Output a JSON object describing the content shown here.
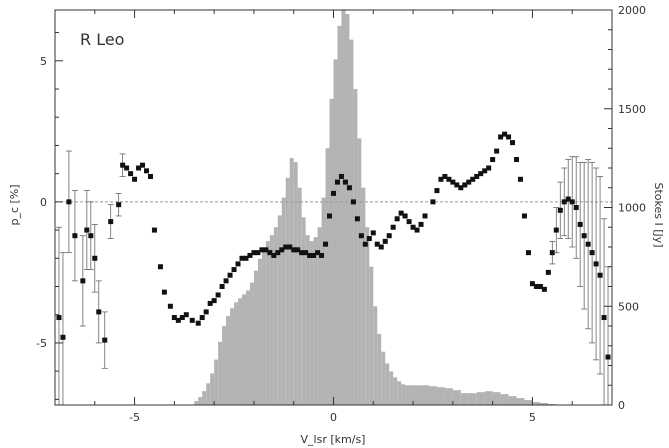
{
  "chart_data": {
    "type": "bar",
    "title": "R Leo",
    "xlabel": "V_lsr [km/s]",
    "ylabel_left": "p_c [%]",
    "ylabel_right": "Stokes I [Jy]",
    "xlim": [
      -7,
      7
    ],
    "ylim_left": [
      -7.2,
      6.8
    ],
    "ylim_right": [
      0,
      2000
    ],
    "xticks": [
      "-5",
      "0",
      "5"
    ],
    "yticks_left": [
      "-5",
      "0",
      "5"
    ],
    "yticks_right": [
      "0",
      "500",
      "1000",
      "1500",
      "2000"
    ],
    "zero_line": true,
    "colors": {
      "bars": "#b3b3b3",
      "points": "#111111",
      "axes": "#333333",
      "zero_line": "#999999"
    },
    "series": [
      {
        "type": "histogram",
        "axis": "right",
        "x": [
          -3.5,
          -3.4,
          -3.3,
          -3.2,
          -3.1,
          -3.0,
          -2.9,
          -2.8,
          -2.7,
          -2.6,
          -2.5,
          -2.4,
          -2.3,
          -2.2,
          -2.1,
          -2.0,
          -1.9,
          -1.8,
          -1.7,
          -1.6,
          -1.5,
          -1.4,
          -1.3,
          -1.2,
          -1.1,
          -1.0,
          -0.9,
          -0.8,
          -0.7,
          -0.6,
          -0.5,
          -0.4,
          -0.3,
          -0.2,
          -0.1,
          0.0,
          0.1,
          0.2,
          0.3,
          0.4,
          0.5,
          0.6,
          0.7,
          0.8,
          0.9,
          1.0,
          1.1,
          1.2,
          1.3,
          1.4,
          1.5,
          1.6,
          1.7,
          1.8,
          1.9,
          2.0,
          2.2,
          2.4,
          2.6,
          2.8,
          3.0,
          3.2,
          3.4,
          3.6,
          3.8,
          4.0,
          4.2,
          4.4,
          4.6,
          4.8,
          5.0,
          5.2,
          5.4,
          5.6
        ],
        "values": [
          20,
          40,
          70,
          110,
          160,
          230,
          320,
          400,
          450,
          490,
          520,
          540,
          560,
          580,
          620,
          680,
          740,
          790,
          830,
          860,
          900,
          960,
          1050,
          1150,
          1250,
          1230,
          1100,
          950,
          860,
          830,
          850,
          900,
          1050,
          1300,
          1550,
          1750,
          1920,
          2000,
          1980,
          1850,
          1600,
          1350,
          1100,
          900,
          700,
          500,
          360,
          270,
          210,
          170,
          140,
          120,
          105,
          100,
          100,
          100,
          100,
          95,
          90,
          85,
          75,
          60,
          60,
          65,
          70,
          65,
          55,
          45,
          35,
          25,
          15,
          10,
          5,
          2
        ]
      },
      {
        "type": "scatter",
        "axis": "left",
        "name": "",
        "x": [
          -6.9,
          -6.8,
          -6.65,
          -6.5,
          -6.3,
          -6.2,
          -6.1,
          -6.0,
          -5.9,
          -5.75,
          -5.6,
          -5.4,
          -5.3,
          -5.2,
          -5.1,
          -5.0,
          -4.9,
          -4.8,
          -4.7,
          -4.6,
          -4.5,
          -4.35,
          -4.25,
          -4.1,
          -4.0,
          -3.9,
          -3.8,
          -3.7,
          -3.55,
          -3.4,
          -3.3,
          -3.2,
          -3.1,
          -3.0,
          -2.9,
          -2.8,
          -2.7,
          -2.6,
          -2.5,
          -2.4,
          -2.3,
          -2.2,
          -2.1,
          -2.0,
          -1.9,
          -1.8,
          -1.7,
          -1.6,
          -1.5,
          -1.4,
          -1.3,
          -1.2,
          -1.1,
          -1.0,
          -0.9,
          -0.8,
          -0.7,
          -0.6,
          -0.5,
          -0.4,
          -0.3,
          -0.2,
          -0.1,
          0.0,
          0.1,
          0.2,
          0.3,
          0.4,
          0.5,
          0.6,
          0.7,
          0.8,
          0.9,
          1.0,
          1.1,
          1.2,
          1.3,
          1.4,
          1.5,
          1.6,
          1.7,
          1.8,
          1.9,
          2.0,
          2.1,
          2.2,
          2.3,
          2.5,
          2.6,
          2.7,
          2.8,
          2.9,
          3.0,
          3.1,
          3.2,
          3.3,
          3.4,
          3.5,
          3.6,
          3.7,
          3.8,
          3.9,
          4.0,
          4.1,
          4.2,
          4.3,
          4.4,
          4.5,
          4.6,
          4.7,
          4.8,
          4.9,
          5.0,
          5.1,
          5.2,
          5.3,
          5.4,
          5.5,
          5.6,
          5.7,
          5.8,
          5.9,
          6.0,
          6.1,
          6.2,
          6.3,
          6.4,
          6.5,
          6.6,
          6.7,
          6.8,
          6.9
        ],
        "values": [
          -4.1,
          -4.8,
          0.0,
          -1.2,
          -2.8,
          -1.0,
          -1.2,
          -2.0,
          -3.9,
          -4.9,
          -0.7,
          -0.1,
          1.3,
          1.2,
          1.0,
          0.8,
          1.2,
          1.3,
          1.1,
          0.9,
          -1.0,
          -2.3,
          -3.2,
          -3.7,
          -4.1,
          -4.2,
          -4.1,
          -4.0,
          -4.2,
          -4.3,
          -4.1,
          -3.9,
          -3.6,
          -3.5,
          -3.3,
          -3.0,
          -2.8,
          -2.6,
          -2.4,
          -2.2,
          -2.0,
          -2.0,
          -1.9,
          -1.8,
          -1.8,
          -1.7,
          -1.7,
          -1.8,
          -1.9,
          -1.8,
          -1.7,
          -1.6,
          -1.6,
          -1.7,
          -1.7,
          -1.8,
          -1.8,
          -1.9,
          -1.9,
          -1.8,
          -1.9,
          -1.5,
          -0.5,
          0.3,
          0.7,
          0.9,
          0.7,
          0.5,
          0.0,
          -0.6,
          -1.2,
          -1.5,
          -1.3,
          -1.1,
          -1.5,
          -1.6,
          -1.4,
          -1.2,
          -0.9,
          -0.6,
          -0.4,
          -0.5,
          -0.7,
          -0.9,
          -1.0,
          -0.8,
          -0.5,
          0.0,
          0.4,
          0.8,
          0.9,
          0.8,
          0.7,
          0.6,
          0.5,
          0.6,
          0.7,
          0.8,
          0.9,
          1.0,
          1.1,
          1.2,
          1.5,
          1.8,
          2.3,
          2.4,
          2.3,
          2.1,
          1.5,
          0.8,
          -0.5,
          -1.8,
          -2.9,
          -3.0,
          -3.0,
          -3.1,
          -2.5,
          -1.8,
          -1.0,
          -0.3,
          0.0,
          0.1,
          0.0,
          -0.2,
          -0.8,
          -1.2,
          -1.5,
          -1.8,
          -2.2,
          -2.6,
          -4.1,
          -5.5
        ],
        "errors": [
          3.2,
          3.0,
          1.8,
          1.6,
          1.6,
          1.4,
          1.2,
          1.2,
          1.1,
          1.0,
          0.6,
          0.4,
          0.4,
          0.3,
          0.3,
          0.3,
          0.3,
          0.3,
          0.3,
          0.3,
          0.2,
          0.2,
          0.15,
          0.15,
          0.15,
          0.15,
          0.15,
          0.15,
          0.15,
          0.15,
          0.15,
          0.15,
          0.15,
          0.15,
          0.15,
          0.15,
          0.15,
          0.15,
          0.15,
          0.15,
          0.15,
          0.15,
          0.15,
          0.15,
          0.15,
          0.15,
          0.15,
          0.15,
          0.15,
          0.15,
          0.15,
          0.15,
          0.15,
          0.15,
          0.15,
          0.15,
          0.15,
          0.15,
          0.15,
          0.15,
          0.15,
          0.15,
          0.15,
          0.15,
          0.15,
          0.15,
          0.15,
          0.15,
          0.15,
          0.15,
          0.15,
          0.15,
          0.15,
          0.15,
          0.15,
          0.15,
          0.15,
          0.15,
          0.15,
          0.15,
          0.15,
          0.15,
          0.15,
          0.15,
          0.15,
          0.15,
          0.15,
          0.15,
          0.15,
          0.15,
          0.15,
          0.15,
          0.15,
          0.15,
          0.15,
          0.15,
          0.15,
          0.15,
          0.15,
          0.15,
          0.15,
          0.15,
          0.2,
          0.2,
          0.2,
          0.2,
          0.2,
          0.2,
          0.2,
          0.2,
          0.2,
          0.2,
          0.2,
          0.2,
          0.2,
          0.2,
          0.3,
          0.4,
          0.8,
          1.0,
          1.2,
          1.4,
          1.6,
          1.8,
          2.2,
          2.6,
          3.0,
          3.2,
          3.4,
          3.5,
          3.5,
          3.2
        ]
      }
    ]
  }
}
